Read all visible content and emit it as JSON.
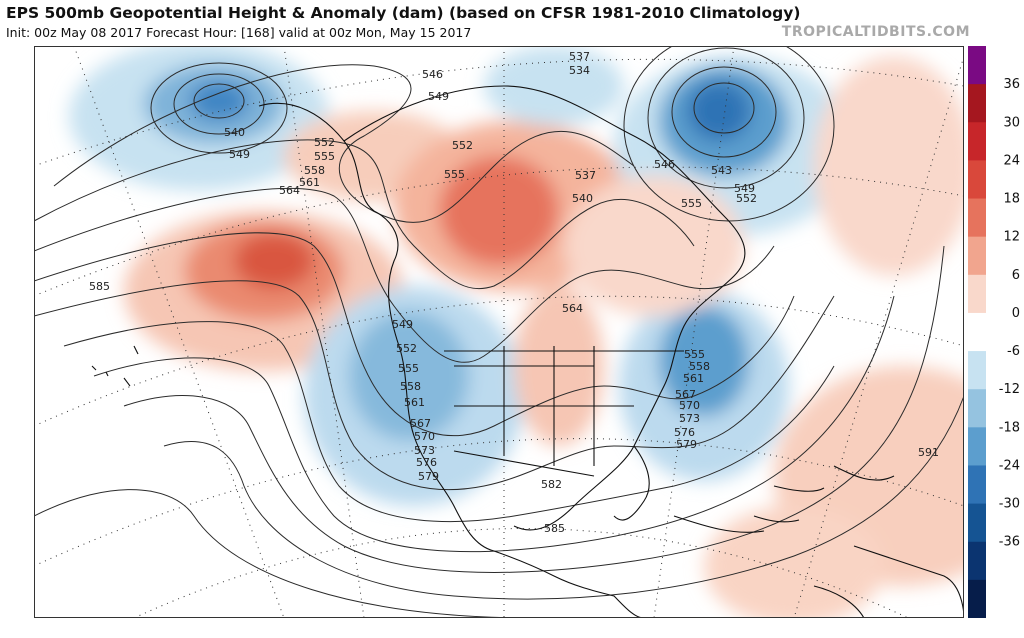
{
  "header": {
    "title": "EPS 500mb Geopotential Height & Anomaly (dam) (based on CFSR 1981-2010 Climatology)",
    "subtitle": "Init: 00z May 08 2017   Forecast Hour: [168]   valid at 00z Mon, May 15 2017",
    "credit": "TROPICALTIDBITS.COM"
  },
  "map": {
    "variable": "500mb geopotential height anomaly",
    "units": "dam",
    "contour_labels": [
      "537",
      "534",
      "540",
      "549",
      "546",
      "549",
      "552",
      "555",
      "558",
      "561",
      "564",
      "552",
      "555",
      "546",
      "537",
      "540",
      "543",
      "549",
      "552",
      "555",
      "564",
      "549",
      "552",
      "555",
      "558",
      "561",
      "567",
      "570",
      "573",
      "576",
      "579",
      "555",
      "558",
      "561",
      "567",
      "570",
      "573",
      "576",
      "579",
      "582",
      "585",
      "585",
      "591"
    ],
    "colors": {
      "positive_anomaly": "#e8735a",
      "negative_anomaly": "#3f86c4",
      "land": "#ffffff",
      "border": "#111111"
    }
  },
  "colorbar": {
    "ticks": [
      "36",
      "30",
      "24",
      "18",
      "12",
      "6",
      "0",
      "-6",
      "-12",
      "-18",
      "-24",
      "-30",
      "-36"
    ],
    "colors": [
      "#7a0a83",
      "#a5171f",
      "#c7262a",
      "#d9483b",
      "#e6735d",
      "#f1a58e",
      "#f9d8cb",
      "#ffffff",
      "#c7e2f1",
      "#95c3e0",
      "#5c9ece",
      "#2f73b5",
      "#155493",
      "#0b3470",
      "#061d4a"
    ]
  }
}
